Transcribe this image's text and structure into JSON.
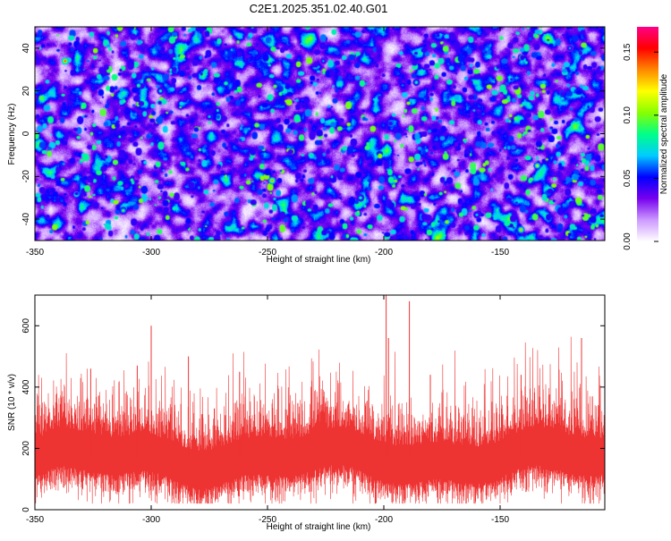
{
  "title": "C2E1.2025.351.02.40.G01",
  "chart_data": [
    {
      "type": "heatmap",
      "title": "C2E1.2025.351.02.40.G01",
      "xlabel": "Height of straight line (km)",
      "ylabel": "Frequency (Hz)",
      "xlim": [
        -350,
        -105
      ],
      "ylim": [
        -50,
        50
      ],
      "xticks": [
        -350,
        -300,
        -250,
        -200,
        -150
      ],
      "yticks": [
        -40,
        -20,
        0,
        20,
        40
      ],
      "colorbar": {
        "label": "Normalized spectral amplitude",
        "range": [
          0,
          0.17
        ],
        "ticks": [
          "0.00",
          "0.05",
          "0.10",
          "0.15"
        ],
        "colors": [
          "#ffffff",
          "#cc99ff",
          "#7700ee",
          "#0000ff",
          "#00ccff",
          "#00ff88",
          "#88ff00",
          "#ffff00",
          "#ff8800",
          "#ff0000",
          "#ff0088"
        ]
      },
      "hotspots": [
        {
          "x": -337,
          "y": 34,
          "v": 0.15
        },
        {
          "x": -248,
          "y": -22,
          "v": 0.14
        },
        {
          "x": -141,
          "y": -45,
          "v": 0.13
        },
        {
          "x": -134,
          "y": -15,
          "v": 0.12
        },
        {
          "x": -312,
          "y": -36,
          "v": 0.1
        },
        {
          "x": -296,
          "y": 20,
          "v": 0.09
        },
        {
          "x": -210,
          "y": -30,
          "v": 0.09
        },
        {
          "x": -186,
          "y": 24,
          "v": 0.09
        },
        {
          "x": -160,
          "y": -38,
          "v": 0.08
        },
        {
          "x": -275,
          "y": 8,
          "v": 0.08
        },
        {
          "x": -226,
          "y": 34,
          "v": 0.07
        },
        {
          "x": -120,
          "y": 40,
          "v": 0.07
        }
      ]
    },
    {
      "type": "line",
      "xlabel": "Height of straight line (km)",
      "ylabel": "SNR (10 * v/v)",
      "xlim": [
        -350,
        -105
      ],
      "ylim": [
        0,
        700
      ],
      "xticks": [
        -350,
        -300,
        -250,
        -200,
        -150
      ],
      "yticks": [
        0,
        200,
        400,
        600
      ],
      "color": "#ee3333",
      "baseline": 170,
      "peaks": [
        {
          "x": -300,
          "y": 600
        },
        {
          "x": -306,
          "y": 470
        },
        {
          "x": -284,
          "y": 500
        },
        {
          "x": -199,
          "y": 700
        },
        {
          "x": -189,
          "y": 680
        },
        {
          "x": -198,
          "y": 560
        },
        {
          "x": -115,
          "y": 560
        },
        {
          "x": -180,
          "y": 440
        },
        {
          "x": -141,
          "y": 440
        },
        {
          "x": -326,
          "y": 460
        },
        {
          "x": -262,
          "y": 450
        }
      ]
    }
  ]
}
